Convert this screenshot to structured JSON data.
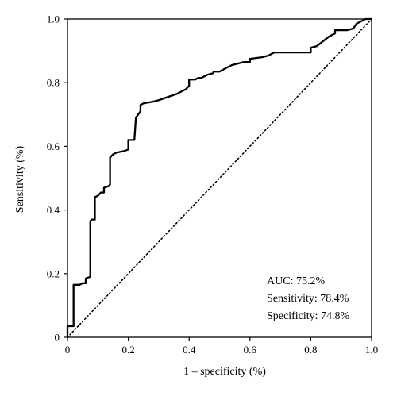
{
  "chart_data": {
    "type": "line",
    "xlabel": "1 – specificity (%)",
    "ylabel": "Sensitivity (%)",
    "xlim": [
      0,
      1.0
    ],
    "ylim": [
      0,
      1.0
    ],
    "xticks": [
      "0",
      "0.2",
      "0.4",
      "0.6",
      "0.8",
      "1.0"
    ],
    "yticks": [
      "0",
      "0.2",
      "0.4",
      "0.6",
      "0.8",
      "1.0"
    ],
    "grid": false,
    "series": [
      {
        "style": "solid",
        "color": "#000000",
        "x": [
          0.0,
          0.0,
          0.02,
          0.02,
          0.04,
          0.05,
          0.06,
          0.06,
          0.075,
          0.075,
          0.08,
          0.09,
          0.09,
          0.1,
          0.11,
          0.12,
          0.12,
          0.135,
          0.14,
          0.14,
          0.15,
          0.16,
          0.185,
          0.2,
          0.2,
          0.21,
          0.22,
          0.225,
          0.24,
          0.24,
          0.25,
          0.28,
          0.3,
          0.33,
          0.36,
          0.38,
          0.39,
          0.4,
          0.4,
          0.42,
          0.43,
          0.44,
          0.46,
          0.48,
          0.48,
          0.5,
          0.51,
          0.52,
          0.54,
          0.56,
          0.58,
          0.6,
          0.6,
          0.64,
          0.66,
          0.68,
          0.72,
          0.8,
          0.8,
          0.82,
          0.84,
          0.86,
          0.88,
          0.88,
          0.9,
          0.92,
          0.94,
          0.95,
          0.96,
          0.97,
          0.98,
          1.0
        ],
        "y": [
          0.0,
          0.035,
          0.035,
          0.165,
          0.165,
          0.17,
          0.17,
          0.185,
          0.19,
          0.365,
          0.37,
          0.37,
          0.44,
          0.445,
          0.455,
          0.455,
          0.47,
          0.475,
          0.48,
          0.565,
          0.575,
          0.58,
          0.585,
          0.59,
          0.62,
          0.62,
          0.62,
          0.69,
          0.71,
          0.73,
          0.735,
          0.74,
          0.745,
          0.755,
          0.765,
          0.775,
          0.78,
          0.79,
          0.81,
          0.81,
          0.815,
          0.815,
          0.825,
          0.83,
          0.835,
          0.835,
          0.84,
          0.845,
          0.855,
          0.86,
          0.865,
          0.865,
          0.875,
          0.88,
          0.885,
          0.895,
          0.895,
          0.895,
          0.91,
          0.915,
          0.93,
          0.945,
          0.955,
          0.965,
          0.965,
          0.965,
          0.97,
          0.985,
          0.99,
          0.995,
          1.0,
          1.0
        ]
      },
      {
        "style": "dotted",
        "color": "#000000",
        "x": [
          0,
          1
        ],
        "y": [
          0,
          1
        ]
      }
    ],
    "annotations": [
      "AUC: 75.2%",
      "Sensitivity: 78.4%",
      "Specificity: 74.8%"
    ]
  }
}
